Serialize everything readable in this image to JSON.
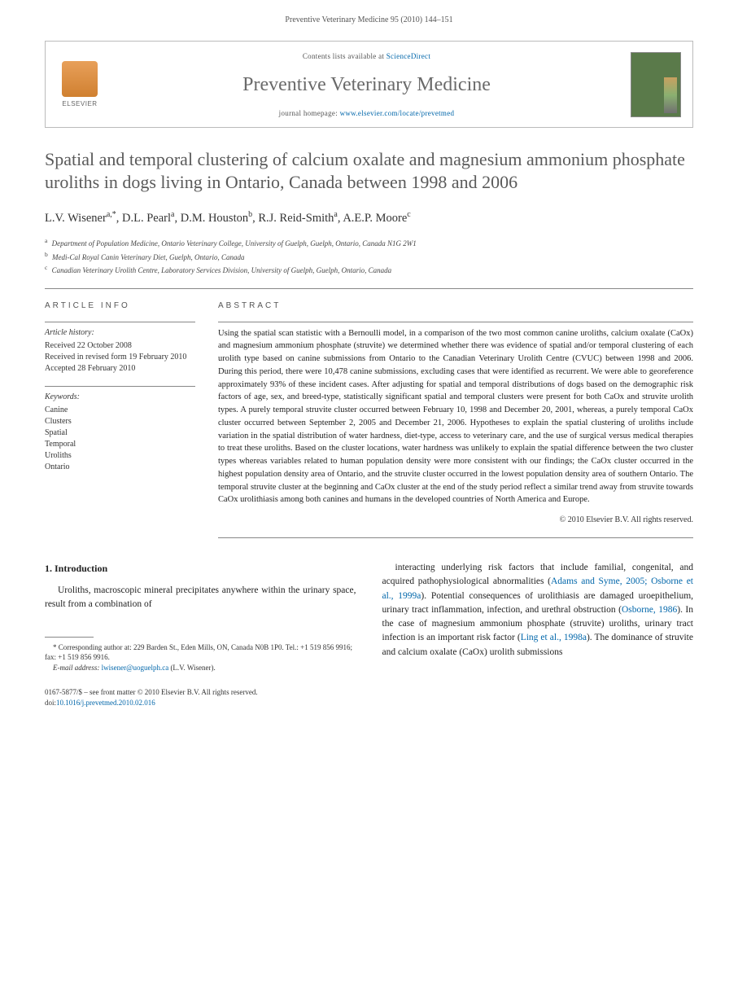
{
  "header": {
    "running_head": "Preventive Veterinary Medicine 95 (2010) 144–151"
  },
  "journal_box": {
    "publisher_label": "ELSEVIER",
    "contents_prefix": "Contents lists available at ",
    "contents_link": "ScienceDirect",
    "journal_name": "Preventive Veterinary Medicine",
    "homepage_prefix": "journal homepage: ",
    "homepage_link": "www.elsevier.com/locate/prevetmed"
  },
  "article": {
    "title": "Spatial and temporal clustering of calcium oxalate and magnesium ammonium phosphate uroliths in dogs living in Ontario, Canada between 1998 and 2006",
    "authors_html": "L.V. Wisener<sup>a,*</sup>, D.L. Pearl<sup>a</sup>, D.M. Houston<sup>b</sup>, R.J. Reid-Smith<sup>a</sup>, A.E.P. Moore<sup>c</sup>",
    "affiliations": [
      {
        "sup": "a",
        "text": "Department of Population Medicine, Ontario Veterinary College, University of Guelph, Guelph, Ontario, Canada N1G 2W1"
      },
      {
        "sup": "b",
        "text": "Medi-Cal Royal Canin Veterinary Diet, Guelph, Ontario, Canada"
      },
      {
        "sup": "c",
        "text": "Canadian Veterinary Urolith Centre, Laboratory Services Division, University of Guelph, Guelph, Ontario, Canada"
      }
    ]
  },
  "info": {
    "heading": "ARTICLE INFO",
    "history_label": "Article history:",
    "history": [
      "Received 22 October 2008",
      "Received in revised form 19 February 2010",
      "Accepted 28 February 2010"
    ],
    "keywords_label": "Keywords:",
    "keywords": [
      "Canine",
      "Clusters",
      "Spatial",
      "Temporal",
      "Uroliths",
      "Ontario"
    ]
  },
  "abstract": {
    "heading": "ABSTRACT",
    "text": "Using the spatial scan statistic with a Bernoulli model, in a comparison of the two most common canine uroliths, calcium oxalate (CaOx) and magnesium ammonium phosphate (struvite) we determined whether there was evidence of spatial and/or temporal clustering of each urolith type based on canine submissions from Ontario to the Canadian Veterinary Urolith Centre (CVUC) between 1998 and 2006. During this period, there were 10,478 canine submissions, excluding cases that were identified as recurrent. We were able to georeference approximately 93% of these incident cases. After adjusting for spatial and temporal distributions of dogs based on the demographic risk factors of age, sex, and breed-type, statistically significant spatial and temporal clusters were present for both CaOx and struvite urolith types. A purely temporal struvite cluster occurred between February 10, 1998 and December 20, 2001, whereas, a purely temporal CaOx cluster occurred between September 2, 2005 and December 21, 2006. Hypotheses to explain the spatial clustering of uroliths include variation in the spatial distribution of water hardness, diet-type, access to veterinary care, and the use of surgical versus medical therapies to treat these uroliths. Based on the cluster locations, water hardness was unlikely to explain the spatial difference between the two cluster types whereas variables related to human population density were more consistent with our findings; the CaOx cluster occurred in the highest population density area of Ontario, and the struvite cluster occurred in the lowest population density area of southern Ontario. The temporal struvite cluster at the beginning and CaOx cluster at the end of the study period reflect a similar trend away from struvite towards CaOx urolithiasis among both canines and humans in the developed countries of North America and Europe.",
    "copyright": "© 2010 Elsevier B.V. All rights reserved."
  },
  "body": {
    "section_heading": "1. Introduction",
    "col1_para": "Uroliths, macroscopic mineral precipitates anywhere within the urinary space, result from a combination of",
    "col2_para_parts": {
      "p1": "interacting underlying risk factors that include familial, congenital, and acquired pathophysiological abnormalities (",
      "ref1": "Adams and Syme, 2005; Osborne et al., 1999a",
      "p2": "). Potential consequences of urolithiasis are damaged uroepithelium, urinary tract inflammation, infection, and urethral obstruction (",
      "ref2": "Osborne, 1986",
      "p3": "). In the case of magnesium ammonium phosphate (struvite) uroliths, urinary tract infection is an important risk factor (",
      "ref3": "Ling et al., 1998a",
      "p4": "). The dominance of struvite and calcium oxalate (CaOx) urolith submissions"
    }
  },
  "footnote": {
    "corr_prefix": "* Corresponding author at: ",
    "corr_address": "229 Barden St., Eden Mills, ON, Canada N0B 1P0. Tel.: +1 519 856 9916; fax: +1 519 856 9916.",
    "email_label": "E-mail address: ",
    "email": "lwisener@uoguelph.ca",
    "email_suffix": " (L.V. Wisener)."
  },
  "footer": {
    "line1": "0167-5877/$ – see front matter © 2010 Elsevier B.V. All rights reserved.",
    "doi_prefix": "doi:",
    "doi": "10.1016/j.prevetmed.2010.02.016"
  },
  "colors": {
    "link": "#0066aa",
    "title_gray": "#5a5a5a",
    "journal_gray": "#6a6a6a",
    "border": "#888888",
    "cover_bg": "#5a7a4a"
  }
}
